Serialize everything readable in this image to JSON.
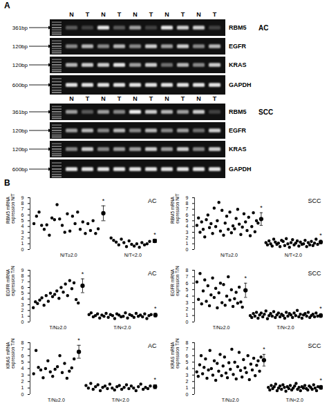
{
  "gel": {
    "label": "A",
    "lanes": [
      "N",
      "T",
      "N",
      "T",
      "N",
      "T",
      "N",
      "T",
      "N",
      "T"
    ],
    "blocks": [
      {
        "name": "AC",
        "rows": [
          {
            "gene": "RBM5",
            "size": "361bp",
            "intensity": [
              0.3,
              0.2,
              0.9,
              0.3,
              0.6,
              0.2,
              0.9,
              0.8,
              0.8,
              0.2
            ]
          },
          {
            "gene": "EGFR",
            "size": "120bp",
            "intensity": [
              0.5,
              0.7,
              0.5,
              0.7,
              0.5,
              0.8,
              0.6,
              0.8,
              0.5,
              0.7
            ]
          },
          {
            "gene": "KRAS",
            "size": "120bp",
            "intensity": [
              0.7,
              0.8,
              0.8,
              0.9,
              0.6,
              0.8,
              0.4,
              0.7,
              0.5,
              0.8
            ]
          },
          {
            "gene": "GAPDH",
            "size": "600bp",
            "intensity": [
              0.9,
              0.9,
              0.9,
              0.9,
              0.9,
              0.9,
              0.9,
              0.9,
              0.9,
              0.9
            ]
          }
        ]
      },
      {
        "name": "SCC",
        "rows": [
          {
            "gene": "RBM5",
            "size": "361bp",
            "intensity": [
              0.6,
              0.3,
              0.6,
              0.5,
              0.95,
              0.8,
              0.7,
              0.6,
              0.8,
              0.2
            ]
          },
          {
            "gene": "EGFR",
            "size": "120bp",
            "intensity": [
              0.6,
              0.7,
              0.5,
              0.7,
              0.5,
              0.7,
              0.5,
              0.6,
              0.4,
              0.8
            ]
          },
          {
            "gene": "KRAS",
            "size": "120bp",
            "intensity": [
              0.5,
              0.8,
              0.5,
              0.6,
              0.6,
              0.8,
              0.6,
              0.8,
              0.5,
              0.8
            ]
          },
          {
            "gene": "GAPDH",
            "size": "600bp",
            "intensity": [
              0.9,
              0.9,
              0.9,
              0.9,
              0.9,
              0.9,
              0.9,
              0.9,
              0.9,
              0.9
            ]
          }
        ]
      }
    ]
  },
  "charts_label": "B",
  "chart_data": [
    {
      "type": "scatter",
      "title": "AC",
      "ylabel": "RBM5 mRNA expression N/T",
      "ylim": [
        0,
        9
      ],
      "yticks": [
        0,
        1,
        2,
        3,
        4,
        5,
        6,
        7,
        8,
        9
      ],
      "tick_labels": "y",
      "color": "#000000",
      "marker": "circle",
      "annotation": "*",
      "series": [
        {
          "name": "N/T≥2.0",
          "values": [
            4.5,
            5.8,
            6.5,
            4.2,
            3.5,
            4.3,
            2.5,
            5.5,
            5.2,
            7.8,
            5.3,
            4.2,
            3.0,
            6.2,
            3.2,
            5.8,
            4.5,
            6.5,
            3.5,
            4.8,
            2.8,
            4.5,
            3.3,
            5.0,
            2.8,
            3.6
          ],
          "mean": 6.3,
          "error": 1.3
        },
        {
          "name": "N/T<2.0",
          "values": [
            2.0,
            1.6,
            1.3,
            0.8,
            1.8,
            1.2,
            0.5,
            1.5,
            0.9,
            0.6,
            1.0,
            0.4,
            1.2,
            0.8,
            1.0,
            1.4
          ],
          "mean": 1.5,
          "error": 0.3
        }
      ]
    },
    {
      "type": "scatter",
      "title": "SCC",
      "ylabel": "RBM5 mRNA expression N/T",
      "ylim": [
        0,
        9
      ],
      "yticks": [
        0,
        1,
        2,
        3,
        4,
        5,
        6,
        7,
        8,
        9
      ],
      "tick_labels": "y",
      "color": "#000000",
      "marker": "circle",
      "annotation": "*",
      "series": [
        {
          "name": "N/T≥2.0",
          "values": [
            4.2,
            5.5,
            3.0,
            4.8,
            3.5,
            2.2,
            5.2,
            6.0,
            3.8,
            4.5,
            2.8,
            7.2,
            4.0,
            5.0,
            8.2,
            3.2,
            6.8,
            2.5,
            4.6,
            5.8,
            3.5,
            6.5,
            2.9,
            4.1,
            3.6,
            5.4,
            7.0,
            4.4,
            2.6,
            3.9,
            6.2,
            4.8,
            3.3,
            5.6,
            2.4,
            4.0,
            6.4,
            3.1,
            5.0,
            4.6
          ],
          "mean": 5.3,
          "error": 1.1
        },
        {
          "name": "N/T<2.0",
          "values": [
            1.2,
            0.8,
            1.5,
            1.0,
            0.6,
            1.8,
            1.3,
            0.9,
            1.1,
            0.5,
            1.6,
            1.4,
            0.7,
            1.9,
            1.0,
            0.4,
            1.2,
            1.7,
            0.8,
            1.1,
            1.5,
            0.6,
            1.3,
            0.9,
            1.0,
            1.6,
            0.5,
            1.2,
            0.8,
            1.4,
            0.7,
            1.1,
            1.8,
            0.9
          ],
          "mean": 1.3,
          "error": 0.3
        }
      ]
    },
    {
      "type": "scatter",
      "title": "AC",
      "ylabel": "EGFR mRNA expression T/N",
      "ylim": [
        0,
        9
      ],
      "yticks": [
        0,
        1,
        2,
        3,
        4,
        5,
        6,
        7,
        8,
        9
      ],
      "tick_labels": "y",
      "color": "#000000",
      "marker": "circle",
      "annotation": "*",
      "series": [
        {
          "name": "T/N≥2.0",
          "values": [
            2.5,
            3.5,
            3.2,
            3.8,
            4.2,
            2.9,
            4.6,
            3.6,
            5.0,
            4.4,
            4.8,
            5.4,
            4.1,
            6.0,
            5.2,
            6.6,
            4.6,
            7.2,
            5.8,
            6.8,
            3.9,
            3.3
          ],
          "mean": 6.3,
          "error": 1.2
        },
        {
          "name": "T/N<2.0",
          "values": [
            1.3,
            1.6,
            0.9,
            1.1,
            1.4,
            0.7,
            1.2,
            1.0,
            1.5,
            0.8,
            1.3,
            1.1,
            0.6,
            1.4,
            1.2,
            0.9,
            1.0,
            1.6,
            0.7,
            1.3,
            1.1,
            0.8,
            1.5,
            1.0,
            1.2,
            0.9,
            1.4,
            0.6,
            1.1,
            1.3
          ],
          "mean": 1.2,
          "error": 0.3
        }
      ]
    },
    {
      "type": "scatter",
      "title": "SCC",
      "ylabel": "EGFR mRNA expression T/N",
      "ylim": [
        0,
        8
      ],
      "yticks": [
        0,
        1,
        2,
        3,
        4,
        5,
        6,
        7,
        8
      ],
      "tick_labels": "y",
      "color": "#000000",
      "marker": "circle",
      "annotation": "*",
      "series": [
        {
          "name": "T/N≥2.0",
          "values": [
            6.2,
            3.5,
            7.5,
            2.8,
            4.8,
            6.5,
            3.2,
            5.6,
            2.5,
            4.2,
            6.8,
            3.8,
            5.2,
            2.2,
            4.5,
            6.0,
            3.0,
            5.8,
            2.6,
            4.0,
            7.0,
            3.4,
            5.0,
            2.4,
            3.6,
            4.6,
            2.9,
            5.4,
            3.1,
            2.3
          ],
          "mean": 4.9,
          "error": 1.1
        },
        {
          "name": "T/N<2.0",
          "values": [
            1.0,
            0.7,
            1.3,
            0.9,
            1.5,
            0.6,
            1.1,
            1.4,
            0.8,
            1.2,
            1.7,
            0.5,
            1.0,
            1.3,
            0.9,
            1.6,
            0.7,
            1.1,
            1.4,
            0.8,
            1.2,
            1.0,
            0.6,
            1.5,
            0.9,
            1.3,
            1.1,
            0.7,
            1.4,
            1.0,
            1.8,
            0.8,
            1.2,
            0.6,
            1.1,
            1.3,
            0.9,
            1.5,
            0.7,
            1.0,
            1.2,
            0.8,
            1.4,
            0.9
          ],
          "mean": 1.0,
          "error": 0.3
        }
      ]
    },
    {
      "type": "scatter",
      "title": "AC",
      "ylabel": "KRAS mRNA expression T/N",
      "ylim": [
        0,
        8
      ],
      "yticks": [
        0,
        1,
        2,
        3,
        4,
        5,
        6,
        7,
        8
      ],
      "tick_labels": "y",
      "color": "#000000",
      "marker": "circle",
      "annotation": "*",
      "series": [
        {
          "name": "T/N≥2.0",
          "values": [
            3.2,
            6.8,
            4.2,
            3.8,
            2.6,
            4.0,
            5.2,
            3.5,
            2.8,
            3.9,
            4.3,
            6.0,
            3.4,
            4.8,
            2.5,
            3.6,
            4.1,
            5.5
          ],
          "mean": 6.6,
          "error": 1.0
        },
        {
          "name": "T/N<2.0",
          "values": [
            1.4,
            1.0,
            1.7,
            0.8,
            1.2,
            1.5,
            0.6,
            1.1,
            1.3,
            0.9,
            1.6,
            1.0,
            0.7,
            1.2,
            1.4,
            0.8,
            1.1,
            1.5,
            0.9,
            1.3,
            1.0,
            0.6,
            1.2,
            1.6,
            0.8,
            1.1,
            0.9,
            1.3
          ],
          "mean": 1.2,
          "error": 0.3
        }
      ]
    },
    {
      "type": "scatter",
      "title": "SCC",
      "ylabel": "KRAS mRNA expression T/N",
      "ylim": [
        0,
        8
      ],
      "yticks": [
        0,
        1,
        2,
        3,
        4,
        5,
        6,
        7,
        8
      ],
      "tick_labels": "y",
      "color": "#000000",
      "marker": "circle",
      "annotation": "*",
      "series": [
        {
          "name": "T/N≥2.0",
          "values": [
            3.5,
            2.8,
            4.6,
            6.0,
            3.2,
            4.2,
            5.5,
            2.5,
            3.8,
            6.8,
            4.0,
            3.0,
            5.2,
            2.2,
            4.8,
            3.6,
            6.2,
            2.9,
            4.4,
            5.8,
            3.3,
            2.6,
            4.9,
            3.9,
            7.0,
            3.1,
            5.0,
            2.4,
            4.3,
            6.5,
            3.7,
            2.7,
            5.4,
            4.1,
            3.4,
            6.0,
            2.3,
            4.7,
            3.8,
            5.6,
            2.9,
            4.5,
            5.2,
            3.6,
            5.8
          ],
          "mean": 5.3,
          "error": 0.9
        },
        {
          "name": "T/N<2.0",
          "values": [
            1.1,
            0.7,
            1.4,
            0.9,
            1.2,
            1.6,
            0.6,
            1.0,
            1.3,
            0.8,
            1.5,
            1.1,
            0.5,
            1.2,
            0.9,
            1.4,
            0.7,
            1.0,
            1.3,
            1.7,
            0.8,
            1.1,
            0.6,
            1.2,
            1.0,
            1.4,
            0.9,
            0.7,
            1.3,
            1.1,
            0.8,
            1.5,
            1.0,
            0.6,
            1.2
          ],
          "mean": 1.1,
          "error": 0.3
        }
      ]
    }
  ]
}
